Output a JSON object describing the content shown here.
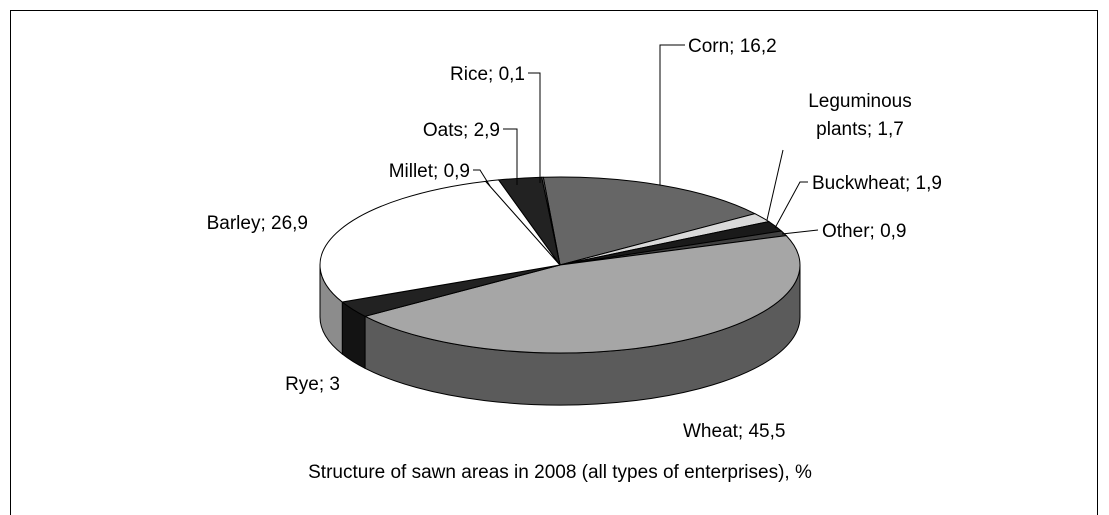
{
  "chart_data": {
    "type": "pie3d",
    "title": "Structure of sawn areas in 2008 (all types of enterprises), %",
    "values": [
      16.2,
      1.7,
      1.9,
      0.9,
      45.5,
      3,
      26.9,
      0.9,
      2.9,
      0.1
    ],
    "value_labels": [
      "Corn; 16,2",
      "Leguminous plants; 1,7",
      "Buckwheat; 1,9",
      "Other; 0,9",
      "Wheat; 45,5",
      "Rye; 3",
      "Barley; 26,9",
      "Millet; 0,9",
      "Oats; 2,9",
      "Rice; 0,1"
    ],
    "colors": [
      "#666666",
      "#d9d9d9",
      "#1a1a1a",
      "#404040",
      "#a6a6a6",
      "#222222",
      "#ffffff",
      "#ffffff",
      "#222222",
      "#808080"
    ]
  }
}
